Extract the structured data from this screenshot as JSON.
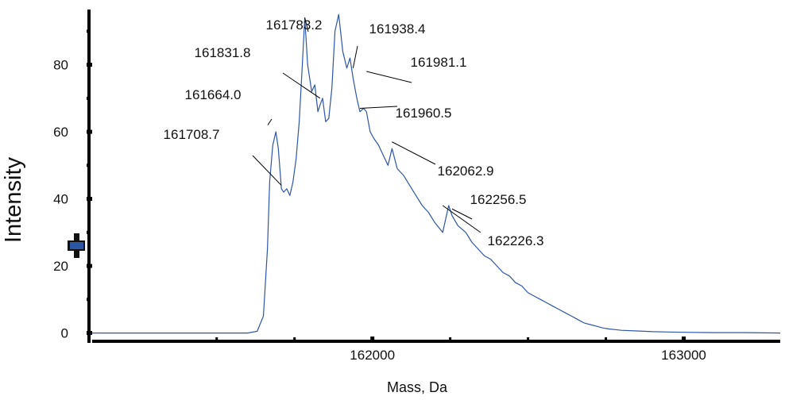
{
  "chart_data": {
    "type": "line",
    "title": "",
    "xlabel": "Mass, Da",
    "ylabel": "Intensity",
    "xlim": [
      161100,
      163310
    ],
    "ylim": [
      -2,
      96
    ],
    "x_ticks": [
      {
        "value": 162000,
        "label": "162000"
      },
      {
        "value": 163000,
        "label": "163000"
      }
    ],
    "x_minor_ticks": [
      161500,
      161750,
      162250,
      162500,
      162750
    ],
    "y_ticks": [
      {
        "value": 0,
        "label": "0"
      },
      {
        "value": 20,
        "label": "20"
      },
      {
        "value": 40,
        "label": "40"
      },
      {
        "value": 60,
        "label": "60"
      },
      {
        "value": 80,
        "label": "80"
      }
    ],
    "grid": false,
    "legend": "none",
    "line_color": "#2e56a6",
    "marker_color": "#2e56a6",
    "series": [
      {
        "x": [
          161100,
          161400,
          161500,
          161600,
          161630,
          161650,
          161663,
          161670,
          161680,
          161690,
          161698,
          161708,
          161715,
          161725,
          161735,
          161745,
          161755,
          161765,
          161775,
          161783,
          161792,
          161805,
          161815,
          161825,
          161832,
          161840,
          161850,
          161860,
          161870,
          161880,
          161892,
          161905,
          161918,
          161928,
          161938,
          161950,
          161960,
          161972,
          161981,
          161993,
          162005,
          162020,
          162035,
          162050,
          162063,
          162080,
          162100,
          162120,
          162140,
          162160,
          162180,
          162200,
          162226,
          162245,
          162256,
          162275,
          162300,
          162320,
          162340,
          162360,
          162380,
          162400,
          162420,
          162440,
          162460,
          162480,
          162500,
          162520,
          162540,
          162560,
          162580,
          162600,
          162620,
          162640,
          162660,
          162680,
          162700,
          162720,
          162740,
          162760,
          162780,
          162800,
          162850,
          162900,
          162950,
          163000,
          163100,
          163200,
          163310
        ],
        "y": [
          0,
          0,
          0,
          0,
          0.5,
          5,
          25,
          45,
          56,
          60,
          55,
          43,
          42,
          43,
          41,
          45,
          52,
          63,
          80,
          94,
          80,
          72,
          74,
          66,
          68,
          70,
          63,
          64,
          73,
          90,
          95,
          84,
          79,
          82,
          76,
          70,
          66,
          67,
          66,
          60,
          58,
          56,
          53,
          50,
          55,
          49,
          47,
          44,
          41,
          38,
          36,
          33,
          30,
          38,
          35,
          32,
          30,
          27,
          25,
          23,
          22,
          20,
          18,
          17,
          15,
          14,
          12,
          11,
          10,
          9,
          8,
          7,
          6,
          5,
          4,
          3,
          2.5,
          2,
          1.5,
          1.2,
          1,
          0.8,
          0.6,
          0.4,
          0.3,
          0.2,
          0.1,
          0.1,
          0
        ]
      }
    ],
    "annotations": [
      {
        "label": "161783.2",
        "x": 161783,
        "y": 94
      },
      {
        "label": "161938.4",
        "x": 161938,
        "y": 79
      },
      {
        "label": "161831.8",
        "x": 161832,
        "y": 70
      },
      {
        "label": "161981.1",
        "x": 161981,
        "y": 78
      },
      {
        "label": "161664.0",
        "x": 161664,
        "y": 62
      },
      {
        "label": "161960.5",
        "x": 161960,
        "y": 67
      },
      {
        "label": "161708.7",
        "x": 161708,
        "y": 44
      },
      {
        "label": "162062.9",
        "x": 162063,
        "y": 57
      },
      {
        "label": "162256.5",
        "x": 162256,
        "y": 37
      },
      {
        "label": "162226.3",
        "x": 162226,
        "y": 38
      }
    ]
  }
}
